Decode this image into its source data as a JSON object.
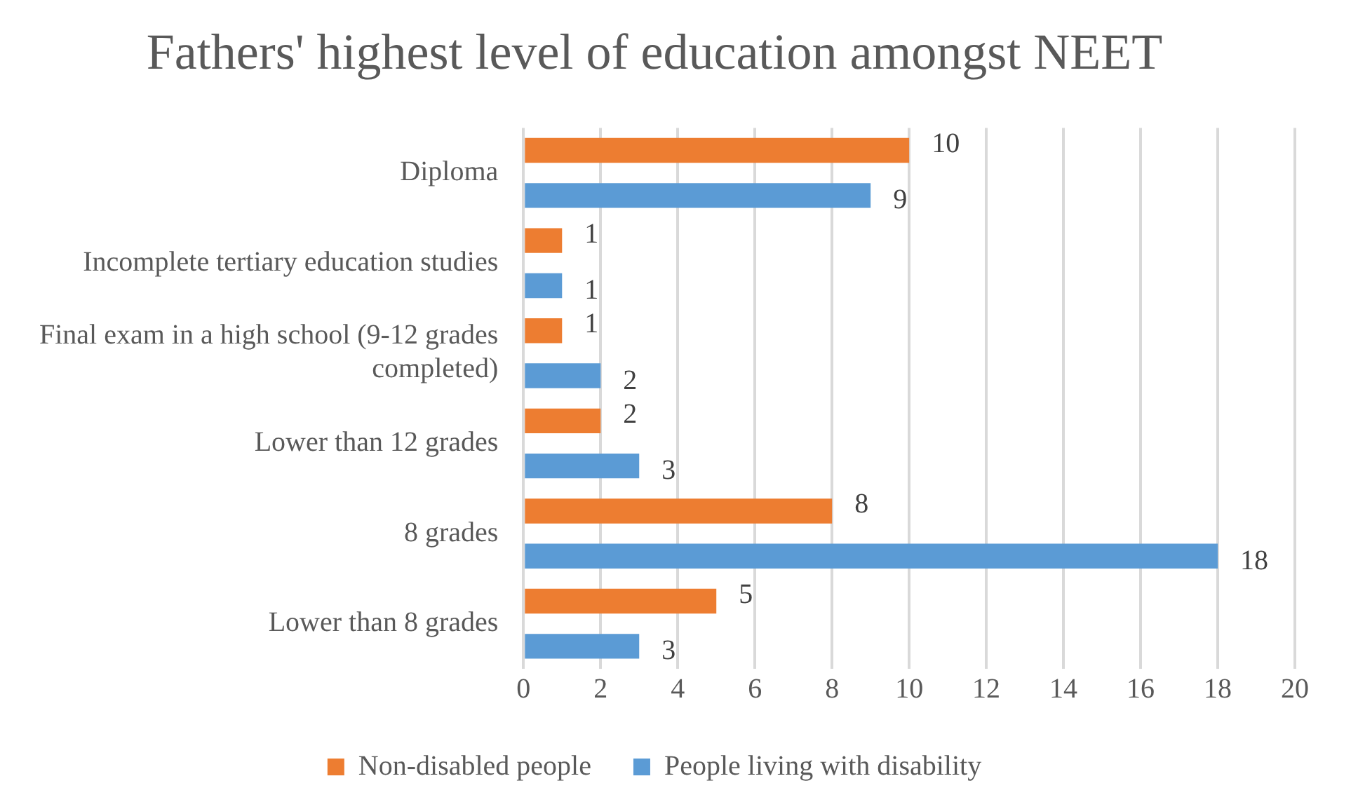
{
  "chart_data": {
    "type": "bar",
    "orientation": "horizontal",
    "title": "Fathers' highest level of education amongst NEET",
    "categories": [
      "Diploma",
      "Incomplete tertiary education studies",
      "Final exam in a high school (9-12 grades completed)",
      "Lower than 12 grades",
      "8 grades",
      "Lower than 8 grades"
    ],
    "series": [
      {
        "name": "Non-disabled people",
        "color": "#ed7d31",
        "values": [
          10,
          1,
          1,
          2,
          8,
          5
        ]
      },
      {
        "name": "People living with disability",
        "color": "#5b9bd5",
        "values": [
          9,
          1,
          2,
          3,
          18,
          3
        ]
      }
    ],
    "xlim": [
      0,
      20
    ],
    "xticks": [
      0,
      2,
      4,
      6,
      8,
      10,
      12,
      14,
      16,
      18,
      20
    ],
    "grid": "x",
    "legend": "bottom",
    "data_labels": true
  }
}
